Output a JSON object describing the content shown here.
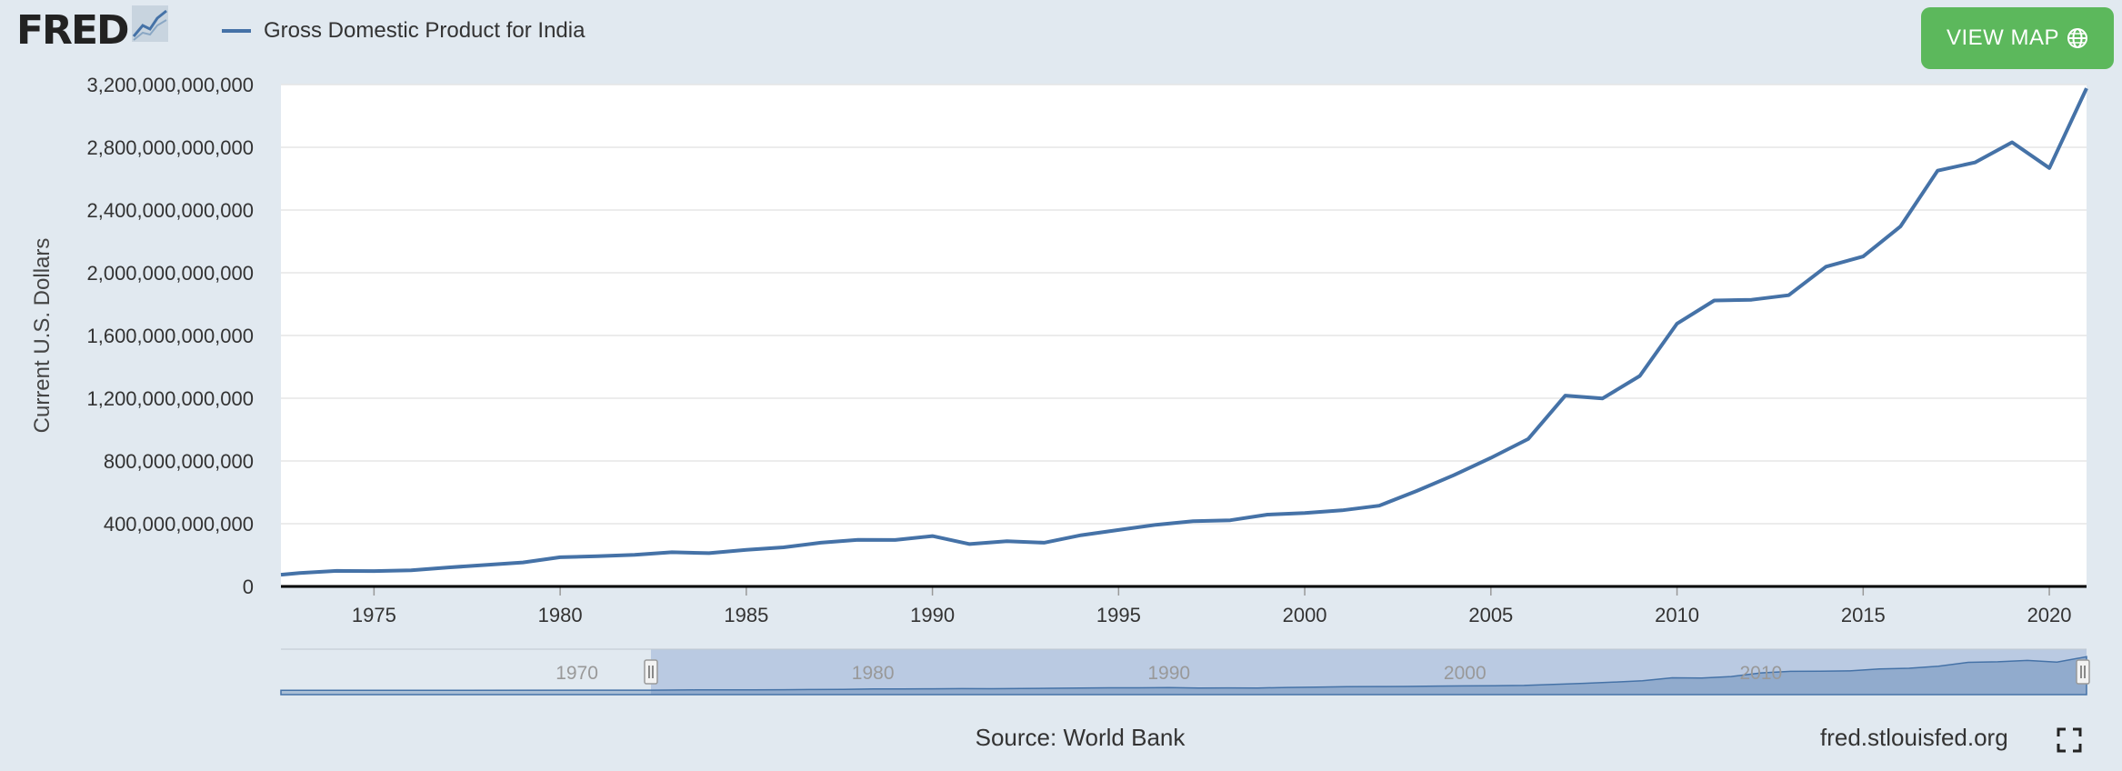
{
  "header": {
    "logo_text": "FRED",
    "series_label": "Gross Domestic Product for India",
    "view_map_label": "VIEW MAP"
  },
  "footer": {
    "source": "Source: World Bank",
    "url": "fred.stlouisfed.org"
  },
  "icons": [
    "fred-chart-icon",
    "globe-icon",
    "fullscreen-icon"
  ],
  "colors": {
    "line": "#4572a7",
    "button": "#5cb85c",
    "background": "#e1e9f0"
  },
  "chart_data": {
    "type": "line",
    "title": "",
    "ylabel": "Current U.S. Dollars",
    "xlabel": "",
    "xlim": [
      1972.5,
      2021
    ],
    "ylim": [
      0,
      3200000000000
    ],
    "yticks": [
      "0",
      "400,000,000,000",
      "800,000,000,000",
      "1,200,000,000,000",
      "1,600,000,000,000",
      "2,000,000,000,000",
      "2,400,000,000,000",
      "2,800,000,000,000",
      "3,200,000,000,000"
    ],
    "ytick_values": [
      0,
      400000000000,
      800000000000,
      1200000000000,
      1600000000000,
      2000000000000,
      2400000000000,
      2800000000000,
      3200000000000
    ],
    "xticks": [
      "1975",
      "1980",
      "1985",
      "1990",
      "1995",
      "2000",
      "2005",
      "2010",
      "2015",
      "2020"
    ],
    "xtick_values": [
      1975,
      1980,
      1985,
      1990,
      1995,
      2000,
      2005,
      2010,
      2015,
      2020
    ],
    "grid": true,
    "legend": "top-left",
    "series": [
      {
        "name": "Gross Domestic Product for India",
        "x": [
          1972.5,
          1973,
          1974,
          1975,
          1976,
          1977,
          1978,
          1979,
          1980,
          1981,
          1982,
          1983,
          1984,
          1985,
          1986,
          1987,
          1988,
          1989,
          1990,
          1991,
          1992,
          1993,
          1994,
          1995,
          1996,
          1997,
          1998,
          1999,
          2000,
          2001,
          2002,
          2003,
          2004,
          2005,
          2006,
          2007,
          2008,
          2009,
          2010,
          2011,
          2012,
          2013,
          2014,
          2015,
          2016,
          2017,
          2018,
          2019,
          2020,
          2021
        ],
        "values": [
          75000000000,
          85000000000,
          99000000000,
          98000000000,
          103000000000,
          121000000000,
          137000000000,
          153000000000,
          186000000000,
          193000000000,
          201000000000,
          218000000000,
          212000000000,
          233000000000,
          249000000000,
          279000000000,
          297000000000,
          296000000000,
          321000000000,
          270000000000,
          288000000000,
          279000000000,
          327000000000,
          360000000000,
          393000000000,
          416000000000,
          422000000000,
          458000000000,
          468000000000,
          485000000000,
          515000000000,
          608000000000,
          709000000000,
          820000000000,
          940000000000,
          1217000000000,
          1199000000000,
          1342000000000,
          1676000000000,
          1823000000000,
          1828000000000,
          1857000000000,
          2039000000000,
          2104000000000,
          2295000000000,
          2651000000000,
          2703000000000,
          2832000000000,
          2668000000000,
          3176000000000
        ]
      }
    ],
    "navigator": {
      "labels": [
        "1970",
        "1980",
        "1990",
        "2000",
        "2010"
      ],
      "label_values": [
        1970,
        1980,
        1990,
        2000,
        2010
      ],
      "range": [
        1960,
        2021
      ],
      "selected": [
        1972.5,
        2021
      ]
    }
  }
}
